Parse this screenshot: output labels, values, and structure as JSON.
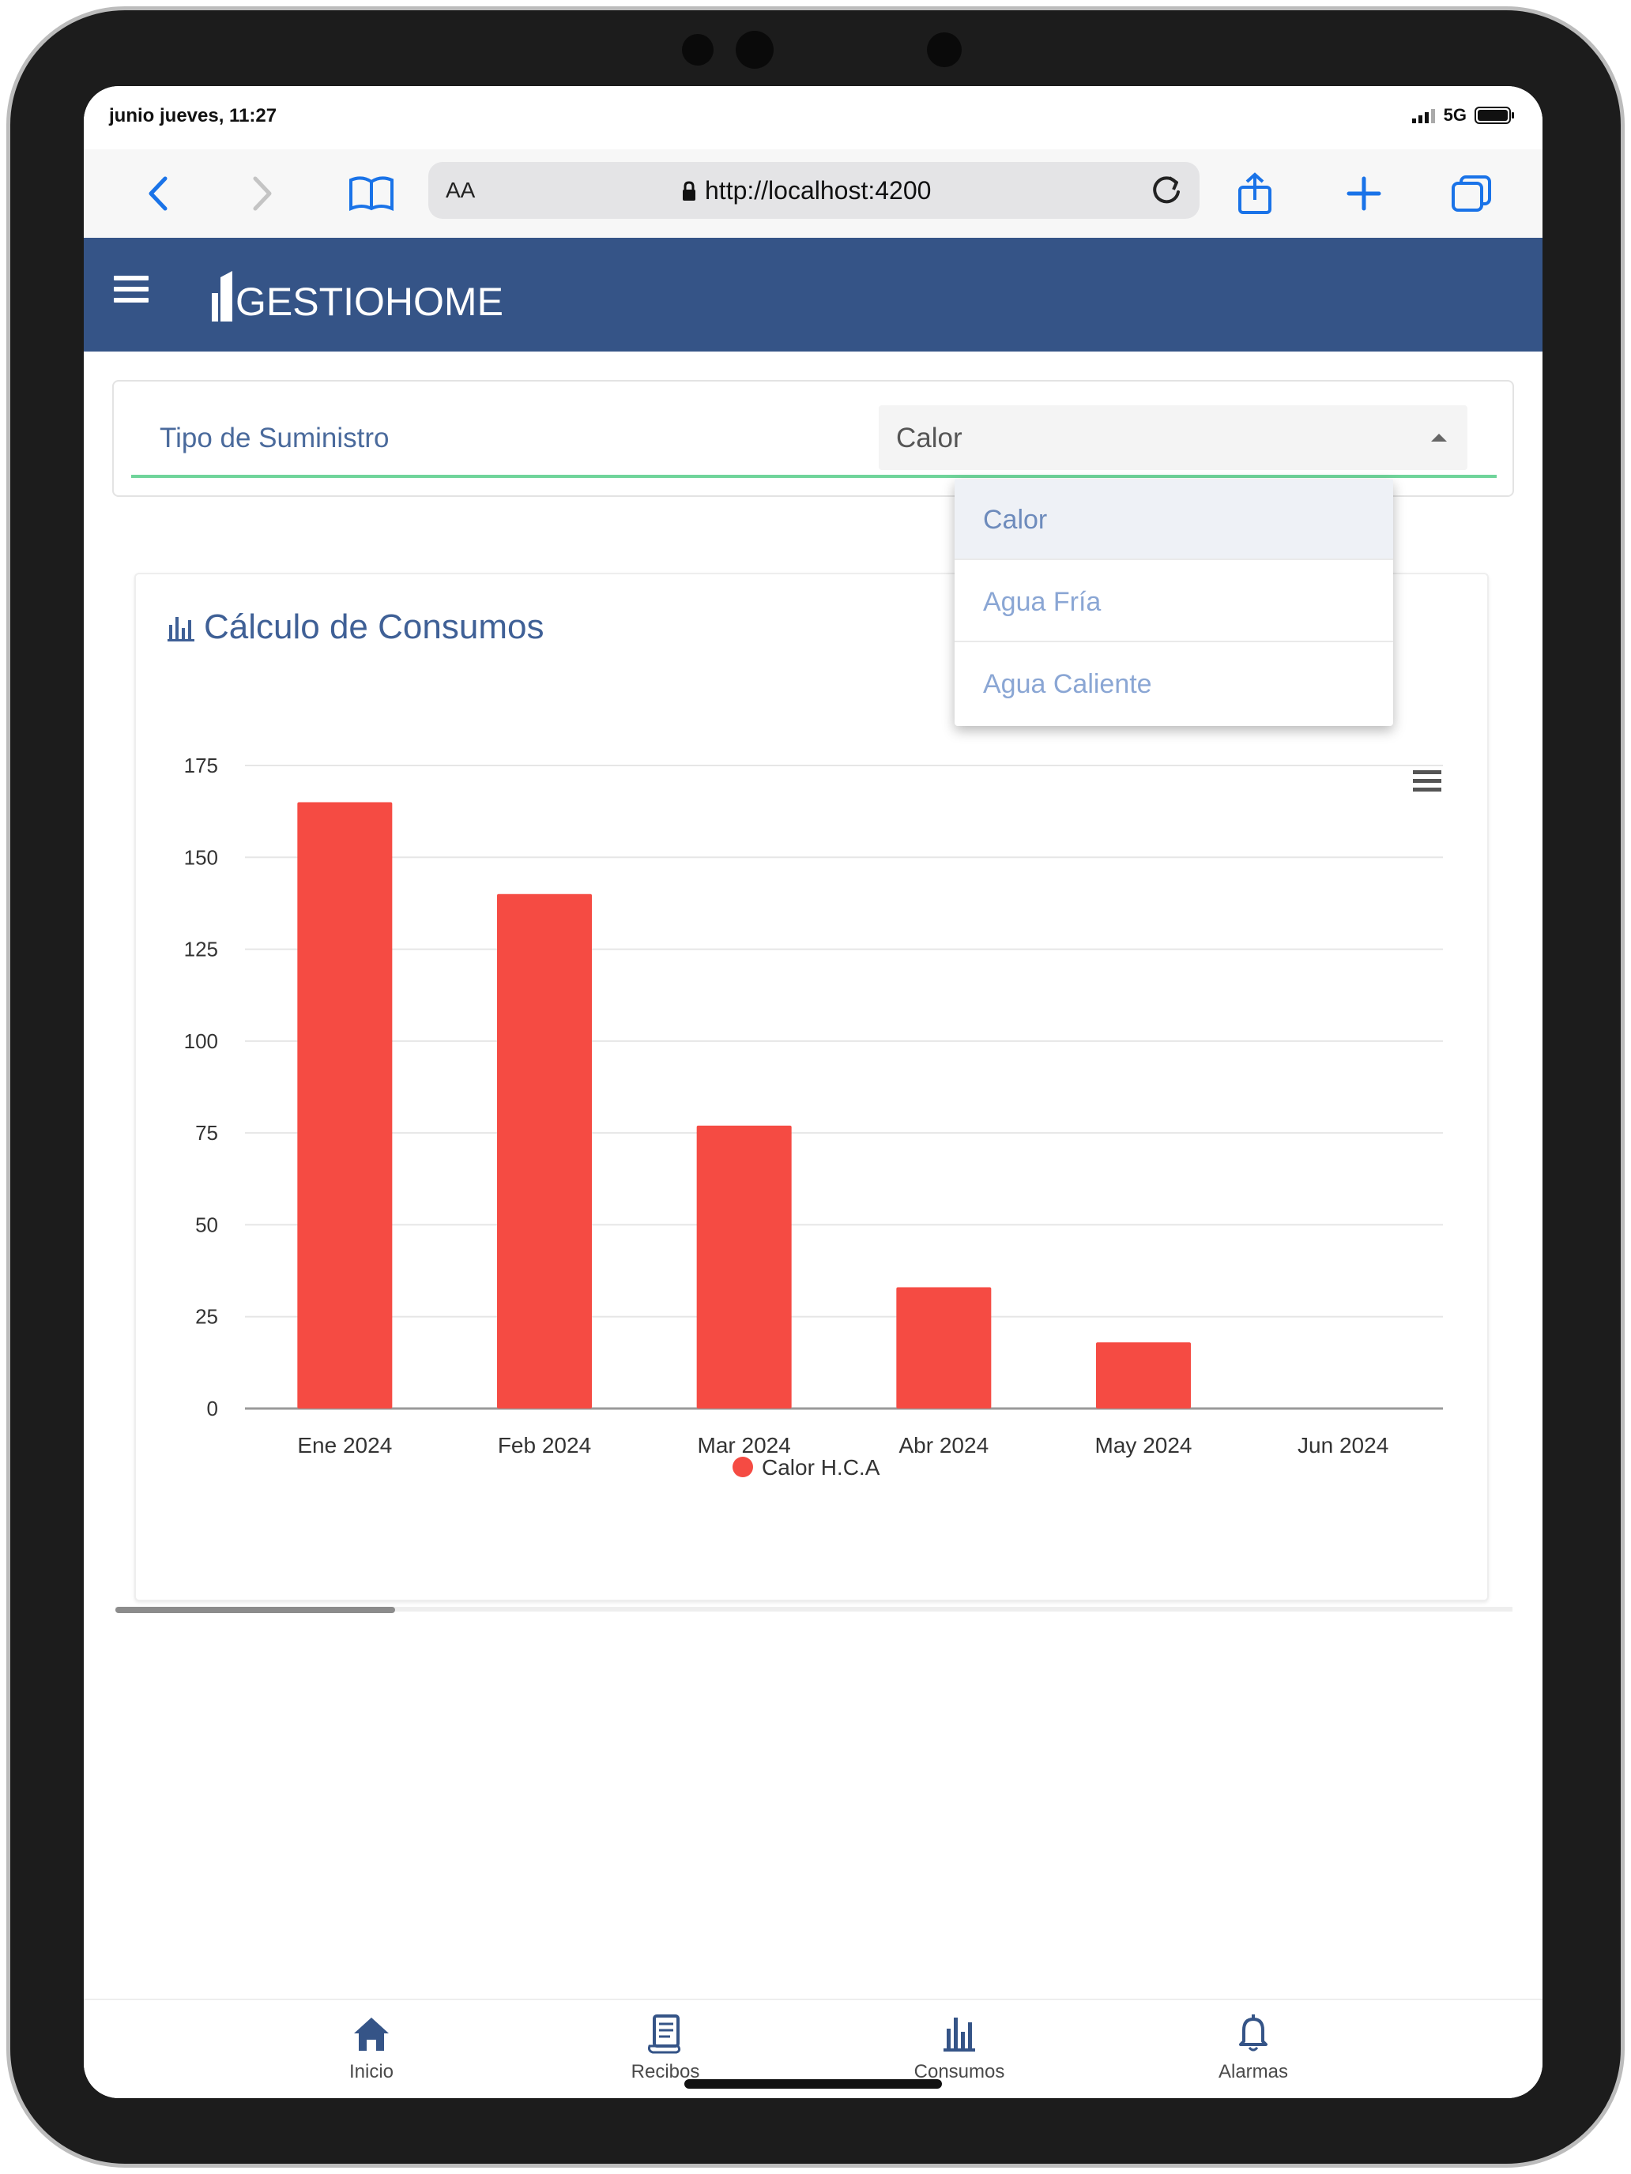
{
  "status": {
    "time": "junio jueves, 11:27",
    "network": "5G"
  },
  "browser": {
    "aa_label": "AA",
    "url": "http://localhost:4200"
  },
  "app": {
    "brand": "GESTIOHOME"
  },
  "filter": {
    "label": "Tipo de Suministro",
    "selected": "Calor",
    "options": [
      "Calor",
      "Agua Fría",
      "Agua Caliente"
    ]
  },
  "chart_card": {
    "title": "Cálculo de Consumos"
  },
  "colors": {
    "brand": "#355487",
    "series": "#f54b43",
    "accent_line": "#6fd49a"
  },
  "chart_data": {
    "type": "bar",
    "categories": [
      "Ene 2024",
      "Feb 2024",
      "Mar 2024",
      "Abr 2024",
      "May 2024",
      "Jun 2024"
    ],
    "series": [
      {
        "name": "Calor H.C.A",
        "values": [
          165,
          140,
          77,
          33,
          18,
          0
        ]
      }
    ],
    "ylim": [
      0,
      175
    ],
    "yticks": [
      "0",
      "25",
      "50",
      "75",
      "100",
      "125",
      "150",
      "175"
    ],
    "grid": true,
    "legend": "bottom-center"
  },
  "tabbar": {
    "items": [
      {
        "label": "Inicio",
        "icon": "home-icon"
      },
      {
        "label": "Recibos",
        "icon": "receipt-icon"
      },
      {
        "label": "Consumos",
        "icon": "bar-chart-icon"
      },
      {
        "label": "Alarmas",
        "icon": "bell-icon"
      }
    ]
  }
}
